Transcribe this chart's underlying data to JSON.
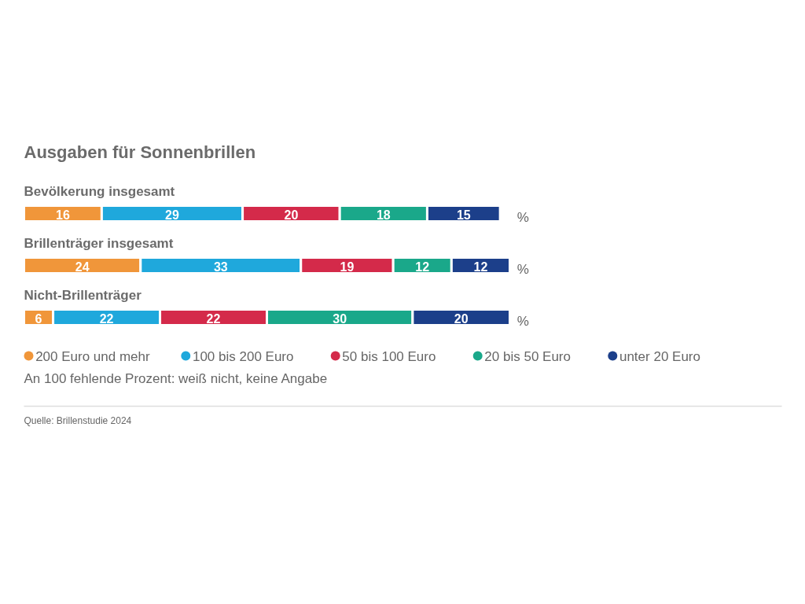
{
  "chart_data": {
    "type": "bar",
    "orientation": "horizontal",
    "stacked": true,
    "title": "Ausgaben für Sonnenbrillen",
    "categories": [
      "Bevölkerung insgesamt",
      "Brillenträger insgesamt",
      "Nicht-Brillenträger"
    ],
    "series": [
      {
        "name": "200 Euro und mehr",
        "color": "#f0963a",
        "values": [
          16,
          24,
          6
        ]
      },
      {
        "name": "100 bis 200 Euro",
        "color": "#1fa8dc",
        "values": [
          29,
          33,
          22
        ]
      },
      {
        "name": "50 bis 100 Euro",
        "color": "#d42a4a",
        "values": [
          20,
          19,
          22
        ]
      },
      {
        "name": "20 bis 50 Euro",
        "color": "#1aa88a",
        "values": [
          18,
          12,
          30
        ]
      },
      {
        "name": "unter 20 Euro",
        "color": "#1c3f8a",
        "values": [
          15,
          12,
          20
        ]
      }
    ],
    "data_labels": true,
    "legend": "bottom",
    "annotations": [
      "%",
      "%",
      "%",
      "An 100 fehlende Prozent: weiß nicht, keine Angabe",
      "Quelle: Brillenstudie 2024"
    ]
  }
}
